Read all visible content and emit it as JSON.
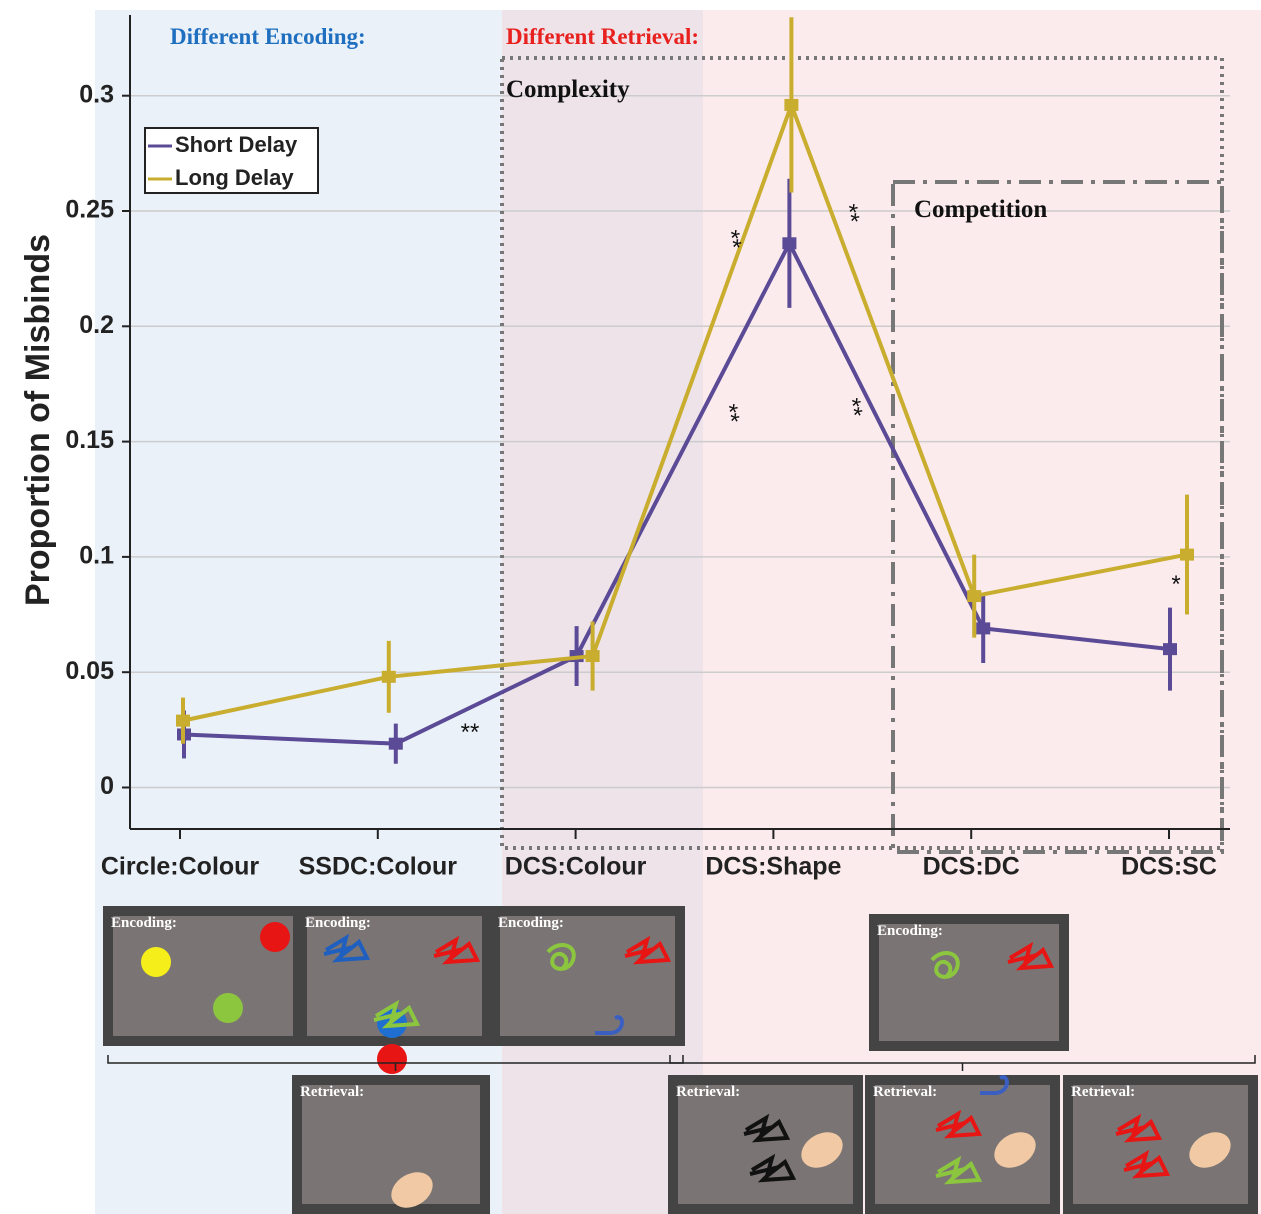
{
  "chart_data": {
    "type": "line",
    "y_label": "Proportion of Misbinds",
    "categories": [
      "Circle:Colour",
      "SSDC:Colour",
      "DCS:Colour",
      "DCS:Shape",
      "DCS:DC",
      "DCS:SC"
    ],
    "series": [
      {
        "name": "Short Delay",
        "color": "#5b4a96",
        "values": [
          0.023,
          0.019,
          0.057,
          0.236,
          0.069,
          0.06
        ],
        "errors": [
          0.0104,
          0.0087,
          0.013,
          0.028,
          0.015,
          0.018
        ]
      },
      {
        "name": "Long Delay",
        "color": "#c9ad2f",
        "values": [
          0.029,
          0.048,
          0.057,
          0.296,
          0.083,
          0.101
        ],
        "errors": [
          0.01,
          0.0156,
          0.015,
          0.038,
          0.018,
          0.026
        ]
      }
    ],
    "ylim": [
      -0.018,
      0.335
    ],
    "yticks": [
      0,
      0.05,
      0.1,
      0.15,
      0.2,
      0.25,
      0.3
    ],
    "grid": true,
    "legend": "upper left",
    "annotations": [
      "Different Encoding:",
      "Different Retrieval:",
      "Complexity",
      "Competition"
    ],
    "significance": [
      "**",
      "**",
      "**",
      "**",
      "**",
      "*"
    ],
    "panel_labels": {
      "encoding": "Encoding:",
      "retrieval": "Retrieval:"
    }
  }
}
